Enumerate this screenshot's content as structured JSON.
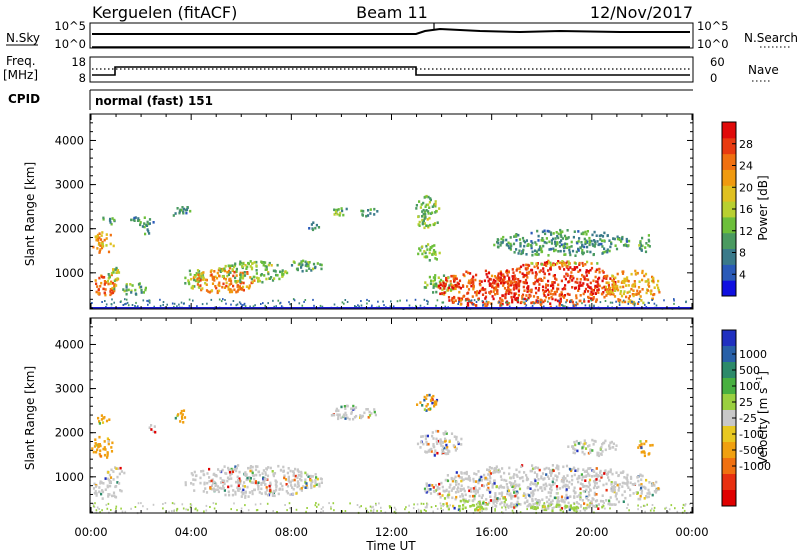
{
  "header": {
    "radar_title": "Kerguelen (fitACF)",
    "beam": "Beam 11",
    "date": "12/Nov/2017"
  },
  "status_panels": {
    "nsky_label": "N.Sky",
    "nsky_ticks": [
      "10^5",
      "10^0"
    ],
    "nsearch_label": "N.Search",
    "freq_label_line1": "Freq.",
    "freq_label_line2": "[MHz]",
    "freq_ticks": [
      "18",
      "8"
    ],
    "nave_label": "Nave",
    "nave_ticks": [
      "60",
      "0"
    ],
    "cpid_label": "CPID",
    "cpid_value": "normal (fast) 151"
  },
  "chart_data": [
    {
      "type": "heatmap",
      "name": "power",
      "ylabel": "Slant Range [km]",
      "xlabel": "Time UT",
      "x_ticks": [
        "00:00",
        "04:00",
        "08:00",
        "12:00",
        "16:00",
        "20:00",
        "00:00"
      ],
      "y_ticks": [
        "1000",
        "2000",
        "3000",
        "4000"
      ],
      "xlim": [
        0,
        24
      ],
      "ylim": [
        180,
        4600
      ],
      "colorbar": {
        "label": "Power [dB]",
        "range": [
          0,
          32
        ],
        "ticks": [
          "4",
          "8",
          "12",
          "16",
          "20",
          "24",
          "28"
        ],
        "colors": [
          "#1010e0",
          "#2a5ab8",
          "#3a7a8a",
          "#4a9a60",
          "#6cbf3a",
          "#b8d030",
          "#e0c020",
          "#f09a10",
          "#f07010",
          "#e83a10",
          "#e00a0a"
        ]
      },
      "regions": [
        {
          "t": [
            0.0,
            0.9
          ],
          "r": [
            1450,
            1950
          ],
          "level": 22
        },
        {
          "t": [
            0.0,
            1.2
          ],
          "r": [
            500,
            1000
          ],
          "level": 26
        },
        {
          "t": [
            0.3,
            0.9
          ],
          "r": [
            2100,
            2300
          ],
          "level": 10
        },
        {
          "t": [
            0.6,
            1.1
          ],
          "r": [
            650,
            1200
          ],
          "level": 14
        },
        {
          "t": [
            1.2,
            2.2
          ],
          "r": [
            500,
            800
          ],
          "level": 12
        },
        {
          "t": [
            2.0,
            2.3
          ],
          "r": [
            1800,
            2200
          ],
          "level": 10
        },
        {
          "t": [
            1.5,
            2.5
          ],
          "r": [
            2100,
            2300
          ],
          "level": 8
        },
        {
          "t": [
            3.1,
            4.0
          ],
          "r": [
            2300,
            2550
          ],
          "level": 8
        },
        {
          "t": [
            3.6,
            4.6
          ],
          "r": [
            650,
            1100
          ],
          "level": 14
        },
        {
          "t": [
            4.0,
            6.5
          ],
          "r": [
            550,
            1150
          ],
          "level": 24
        },
        {
          "t": [
            5.0,
            7.8
          ],
          "r": [
            800,
            1300
          ],
          "level": 13
        },
        {
          "t": [
            7.6,
            9.3
          ],
          "r": [
            1050,
            1300
          ],
          "level": 10
        },
        {
          "t": [
            8.6,
            9.1
          ],
          "r": [
            2000,
            2200
          ],
          "level": 8
        },
        {
          "t": [
            9.5,
            10.4
          ],
          "r": [
            2300,
            2500
          ],
          "level": 12
        },
        {
          "t": [
            10.7,
            11.5
          ],
          "r": [
            2300,
            2500
          ],
          "level": 10
        },
        {
          "t": [
            12.9,
            13.9
          ],
          "r": [
            2000,
            2800
          ],
          "level": 13
        },
        {
          "t": [
            13.0,
            14.0
          ],
          "r": [
            1300,
            1700
          ],
          "level": 12
        },
        {
          "t": [
            13.2,
            14.6
          ],
          "r": [
            550,
            1000
          ],
          "level": 13
        },
        {
          "t": [
            13.8,
            17.5
          ],
          "r": [
            250,
            1100
          ],
          "level": 28
        },
        {
          "t": [
            16.0,
            21.0
          ],
          "r": [
            250,
            1300
          ],
          "level": 29
        },
        {
          "t": [
            17.5,
            20.2
          ],
          "r": [
            1200,
            1300
          ],
          "level": 18
        },
        {
          "t": [
            20.5,
            22.7
          ],
          "r": [
            300,
            1100
          ],
          "level": 22
        },
        {
          "t": [
            16.0,
            21.5
          ],
          "r": [
            1400,
            2000
          ],
          "level": 9
        },
        {
          "t": [
            21.8,
            22.4
          ],
          "r": [
            1500,
            1900
          ],
          "level": 10
        }
      ]
    },
    {
      "type": "heatmap",
      "name": "velocity",
      "ylabel": "Slant Range [km]",
      "xlabel": "Time UT",
      "x_ticks": [
        "00:00",
        "04:00",
        "08:00",
        "12:00",
        "16:00",
        "20:00",
        "00:00"
      ],
      "y_ticks": [
        "1000",
        "2000",
        "3000",
        "4000"
      ],
      "xlim": [
        0,
        24
      ],
      "ylim": [
        180,
        4600
      ],
      "colorbar": {
        "label": "Velocity [m s^-1]",
        "ticks": [
          "1000",
          "500",
          "100",
          "25",
          "-25",
          "-100",
          "-500",
          "-1000"
        ],
        "colors": [
          "#2030c0",
          "#2860a8",
          "#2c8a6a",
          "#48b040",
          "#9ad040",
          "#c8c8c8",
          "#e8c820",
          "#f0a010",
          "#f07010",
          "#e83010",
          "#e00000"
        ]
      },
      "regions": [
        {
          "t": [
            0.0,
            0.9
          ],
          "r": [
            1450,
            1950
          ],
          "color": "#f0a010"
        },
        {
          "t": [
            0.2,
            0.7
          ],
          "r": [
            2200,
            2450
          ],
          "color": "#f0a010"
        },
        {
          "t": [
            0.0,
            1.2
          ],
          "r": [
            500,
            1000
          ],
          "color": "#c8c8c8"
        },
        {
          "t": [
            0.5,
            1.3
          ],
          "r": [
            1000,
            1250
          ],
          "color": "#c8c8c8"
        },
        {
          "t": [
            2.2,
            2.6
          ],
          "r": [
            2000,
            2200
          ],
          "color": "#c8c8c8"
        },
        {
          "t": [
            3.3,
            3.8
          ],
          "r": [
            2250,
            2550
          ],
          "color": "#f0a010"
        },
        {
          "t": [
            3.6,
            9.2
          ],
          "r": [
            550,
            1300
          ],
          "color": "#c8c8c8"
        },
        {
          "t": [
            9.5,
            11.4
          ],
          "r": [
            2300,
            2650
          ],
          "color": "#c8c8c8"
        },
        {
          "t": [
            12.9,
            13.8
          ],
          "r": [
            2500,
            2900
          ],
          "color": "#f0a010"
        },
        {
          "t": [
            13.0,
            14.8
          ],
          "r": [
            1500,
            2100
          ],
          "color": "#c8c8c8"
        },
        {
          "t": [
            13.2,
            22.8
          ],
          "r": [
            300,
            1300
          ],
          "color": "#c8c8c8"
        },
        {
          "t": [
            14.0,
            16.0
          ],
          "r": [
            250,
            500
          ],
          "color": "#9ad040"
        },
        {
          "t": [
            17.5,
            20.5
          ],
          "r": [
            250,
            400
          ],
          "color": "#9ad040"
        },
        {
          "t": [
            19.0,
            21.0
          ],
          "r": [
            1500,
            1900
          ],
          "color": "#c8c8c8"
        },
        {
          "t": [
            21.8,
            22.4
          ],
          "r": [
            1500,
            1900
          ],
          "color": "#f0a010"
        }
      ]
    }
  ]
}
